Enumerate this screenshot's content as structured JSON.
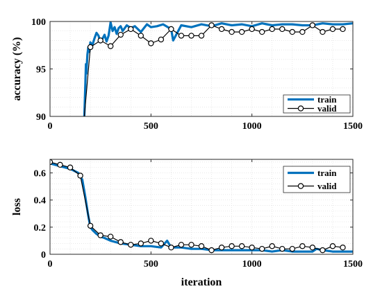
{
  "chart_data": [
    {
      "type": "line",
      "xlabel": "",
      "ylabel": "accuracy (%)",
      "xlim": [
        0,
        1500
      ],
      "ylim": [
        90,
        100
      ],
      "xticks": [
        0,
        500,
        1000,
        1500
      ],
      "yticks": [
        90,
        95,
        100
      ],
      "grid": true,
      "legend_position": "bottom-right",
      "series": [
        {
          "name": "train",
          "color": "#0072BD",
          "style": "thick-line",
          "x": [
            170,
            175,
            178,
            180,
            185,
            190,
            195,
            200,
            210,
            220,
            230,
            240,
            250,
            260,
            270,
            280,
            290,
            300,
            310,
            320,
            330,
            340,
            350,
            360,
            380,
            400,
            420,
            450,
            480,
            500,
            530,
            560,
            600,
            610,
            650,
            700,
            750,
            800,
            850,
            900,
            950,
            1000,
            1050,
            1100,
            1150,
            1200,
            1250,
            1300,
            1350,
            1400,
            1450,
            1500
          ],
          "y": [
            90,
            93.5,
            95.5,
            94.5,
            96.5,
            97.3,
            96.8,
            97.8,
            97.5,
            98.2,
            98.8,
            98.5,
            97.8,
            98.2,
            98.6,
            97.9,
            98.5,
            99.9,
            99.0,
            99.4,
            98.7,
            99.3,
            99.5,
            99.0,
            99.6,
            99.3,
            99.5,
            98.9,
            99.7,
            99.4,
            99.5,
            99.7,
            99.2,
            98.0,
            99.6,
            99.4,
            99.7,
            99.5,
            99.8,
            99.6,
            99.7,
            99.5,
            99.8,
            99.6,
            99.7,
            99.7,
            99.6,
            99.6,
            99.8,
            99.7,
            99.7,
            99.8
          ]
        },
        {
          "name": "valid",
          "color": "#000000",
          "style": "line-circle-markers",
          "x": [
            170,
            200,
            250,
            300,
            350,
            400,
            450,
            500,
            550,
            600,
            650,
            700,
            750,
            800,
            850,
            900,
            950,
            1000,
            1050,
            1100,
            1150,
            1200,
            1250,
            1300,
            1350,
            1400,
            1450
          ],
          "y": [
            90,
            97.3,
            98.0,
            97.4,
            98.6,
            99.2,
            98.5,
            97.7,
            98.1,
            99.2,
            98.5,
            98.5,
            98.5,
            99.6,
            99.2,
            98.9,
            98.9,
            99.2,
            98.9,
            99.2,
            99.2,
            98.9,
            98.9,
            99.6,
            98.9,
            99.2,
            99.2
          ]
        }
      ]
    },
    {
      "type": "line",
      "xlabel": "iteration",
      "ylabel": "loss",
      "xlim": [
        0,
        1500
      ],
      "ylim": [
        0,
        0.7
      ],
      "xticks": [
        0,
        500,
        1000,
        1500
      ],
      "yticks": [
        0,
        0.2,
        0.4,
        0.6
      ],
      "grid": true,
      "legend_position": "top-right",
      "series": [
        {
          "name": "train",
          "color": "#0072BD",
          "style": "thick-line",
          "x": [
            0,
            50,
            100,
            140,
            160,
            175,
            190,
            200,
            210,
            230,
            250,
            270,
            300,
            350,
            400,
            450,
            500,
            550,
            580,
            600,
            620,
            650,
            700,
            750,
            800,
            850,
            900,
            950,
            1000,
            1050,
            1100,
            1150,
            1200,
            1250,
            1300,
            1320,
            1350,
            1400,
            1450,
            1500
          ],
          "y": [
            0.67,
            0.65,
            0.63,
            0.6,
            0.55,
            0.42,
            0.28,
            0.2,
            0.18,
            0.15,
            0.13,
            0.12,
            0.1,
            0.08,
            0.07,
            0.06,
            0.06,
            0.05,
            0.1,
            0.05,
            0.05,
            0.05,
            0.04,
            0.04,
            0.03,
            0.03,
            0.03,
            0.03,
            0.03,
            0.03,
            0.02,
            0.03,
            0.02,
            0.02,
            0.02,
            0.04,
            0.03,
            0.02,
            0.02,
            0.02
          ]
        },
        {
          "name": "valid",
          "color": "#000000",
          "style": "line-circle-markers",
          "x": [
            0,
            50,
            100,
            150,
            200,
            250,
            300,
            350,
            400,
            450,
            500,
            550,
            600,
            650,
            700,
            750,
            800,
            850,
            900,
            950,
            1000,
            1050,
            1100,
            1150,
            1200,
            1250,
            1300,
            1350,
            1400,
            1450
          ],
          "y": [
            0.68,
            0.66,
            0.64,
            0.58,
            0.21,
            0.14,
            0.13,
            0.09,
            0.07,
            0.08,
            0.1,
            0.08,
            0.05,
            0.07,
            0.07,
            0.06,
            0.03,
            0.05,
            0.06,
            0.06,
            0.05,
            0.04,
            0.06,
            0.04,
            0.04,
            0.06,
            0.05,
            0.03,
            0.06,
            0.05
          ]
        }
      ]
    }
  ]
}
